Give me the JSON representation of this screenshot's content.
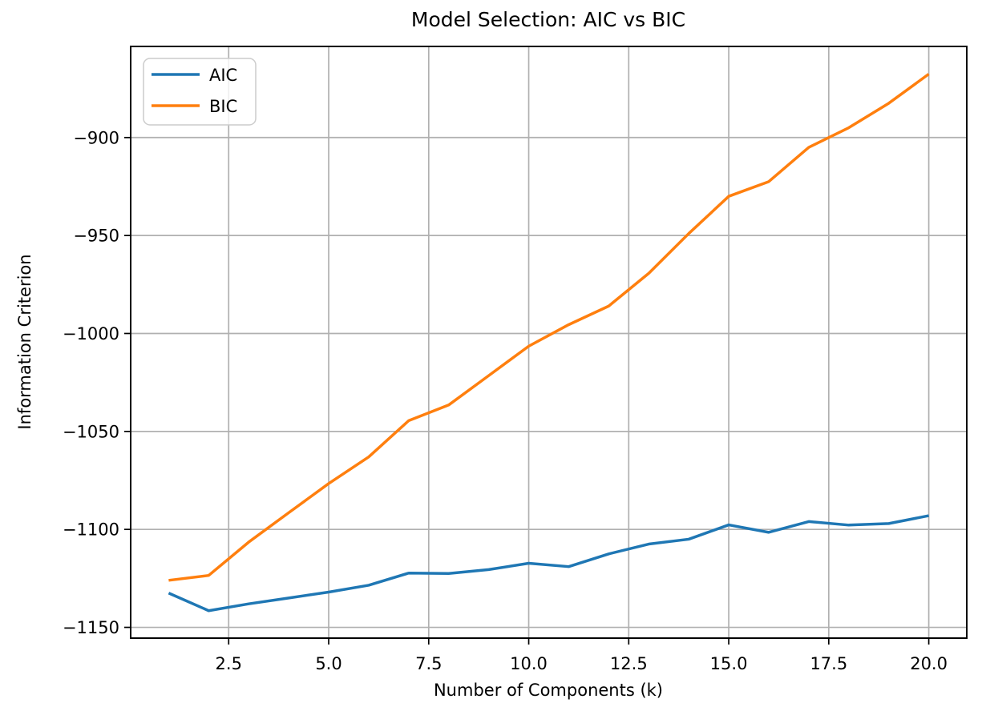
{
  "chart_data": {
    "type": "line",
    "title": "Model Selection: AIC vs BIC",
    "xlabel": "Number of Components (k)",
    "ylabel": "Information Criterion",
    "x": [
      1,
      2,
      3,
      4,
      5,
      6,
      7,
      8,
      9,
      10,
      11,
      12,
      13,
      14,
      15,
      16,
      17,
      18,
      19,
      20
    ],
    "series": [
      {
        "name": "AIC",
        "color": "#1f77b4",
        "values": [
          -1132.5,
          -1141.5,
          -1138.0,
          -1135.0,
          -1132.0,
          -1128.5,
          -1122.3,
          -1122.5,
          -1120.5,
          -1117.3,
          -1119.0,
          -1112.5,
          -1107.5,
          -1105.0,
          -1097.7,
          -1101.5,
          -1096.0,
          -1097.8,
          -1097.0,
          -1093.0
        ]
      },
      {
        "name": "BIC",
        "color": "#ff7f0e",
        "values": [
          -1126.0,
          -1123.5,
          -1106.5,
          -1091.5,
          -1076.6,
          -1063.0,
          -1044.5,
          -1036.5,
          -1021.5,
          -1006.5,
          -995.5,
          -986.0,
          -969.3,
          -949.0,
          -930.0,
          -922.5,
          -905.0,
          -895.0,
          -882.5,
          -867.6
        ]
      }
    ],
    "xlim": [
      0.05,
      20.95
    ],
    "ylim": [
      -1155.5,
      -853.5
    ],
    "xticks": {
      "values": [
        2.5,
        5.0,
        7.5,
        10.0,
        12.5,
        15.0,
        17.5,
        20.0
      ],
      "labels": [
        "2.5",
        "5.0",
        "7.5",
        "10.0",
        "12.5",
        "15.0",
        "17.5",
        "20.0"
      ]
    },
    "yticks": {
      "values": [
        -900,
        -950,
        -1000,
        -1050,
        -1100,
        -1150
      ],
      "labels": [
        "−900",
        "−950",
        "−1000",
        "−1050",
        "−1100",
        "−1150"
      ]
    },
    "grid": true,
    "grid_color": "#b0b0b0",
    "spine_color": "#000000",
    "background_color": "#ffffff",
    "legend": {
      "position": "upper left",
      "entries": [
        "AIC",
        "BIC"
      ]
    }
  }
}
